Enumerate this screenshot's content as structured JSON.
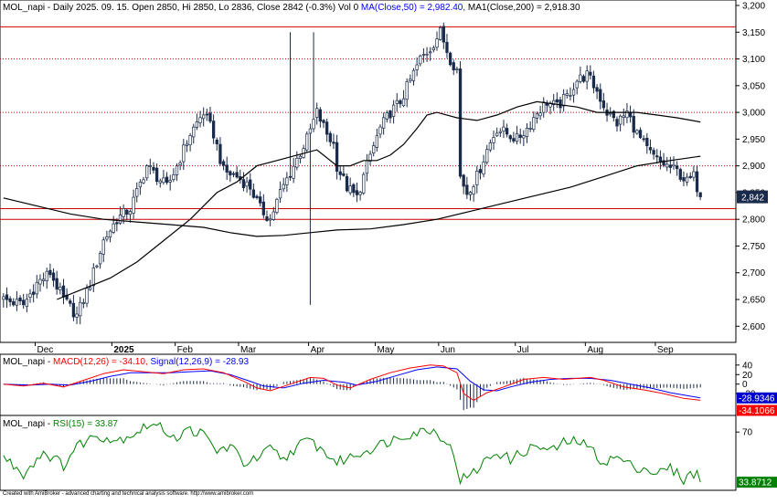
{
  "headers": {
    "price": {
      "prefix": "MOL_napi - Daily 2025. 09. 15. Open 2850, Hi 2850, Lo 2836, Close 2842 (-0.3%) Vol 0 ",
      "ma50": "MA(Close,50) = 2,982.40,",
      "ma200": " MA1(Close,200) = 2,918.30"
    },
    "macd": {
      "prefix": "MOL_napi - ",
      "macd": "MACD(12,26) = -34.10,",
      "signal": " Signal(12,26,9) = -28.93"
    },
    "rsi": {
      "prefix": "MOL_napi - ",
      "rsi": "RSI(15) = 33.87"
    }
  },
  "footer": "Created with AmiBroker - advanced charting and technical analysis software. http://www.amibroker.com",
  "colors": {
    "up": "#ffffff",
    "down": "#1a2a4a",
    "candle_outline": "#1a2a4a",
    "ma50": "#000000",
    "ma200": "#000000",
    "support_line": "#cc0000",
    "macd": "#ff0000",
    "signal": "#0000ff",
    "rsi": "#008000",
    "last_price_bg": "#1a2a4a",
    "macd_value_bg": "#0000cc",
    "signal_value_bg": "#ff0000",
    "rsi_value_bg": "#008000"
  },
  "chart_data": [
    {
      "type": "candlestick",
      "name": "MOL_napi",
      "ylim": [
        2580,
        3200
      ],
      "y_ticks": [
        "2,600",
        "2,650",
        "2,700",
        "2,750",
        "2,800",
        "2,850",
        "2,900",
        "2,950",
        "3,000",
        "3,050",
        "3,100",
        "3,150",
        "3,200"
      ],
      "month_labels": [
        "Dec",
        "2025",
        "Feb",
        "Mar",
        "Apr",
        "May",
        "Jun",
        "Jul",
        "Aug",
        "Sep"
      ],
      "month_start_index": [
        10,
        33,
        52,
        71,
        92,
        112,
        131,
        154,
        175,
        196
      ],
      "bar_count": 210,
      "horizontal_lines": {
        "solid": [
          3160,
          2820,
          2800
        ],
        "dotted": [
          3100,
          3000,
          2900
        ]
      },
      "price_path": [
        [
          0,
          2650
        ],
        [
          6,
          2640
        ],
        [
          10,
          2680
        ],
        [
          14,
          2700
        ],
        [
          18,
          2650
        ],
        [
          22,
          2620
        ],
        [
          26,
          2680
        ],
        [
          30,
          2760
        ],
        [
          34,
          2800
        ],
        [
          38,
          2820
        ],
        [
          40,
          2850
        ],
        [
          43,
          2900
        ],
        [
          46,
          2880
        ],
        [
          49,
          2860
        ],
        [
          52,
          2900
        ],
        [
          56,
          2960
        ],
        [
          60,
          3000
        ],
        [
          63,
          2960
        ],
        [
          66,
          2890
        ],
        [
          70,
          2880
        ],
        [
          74,
          2860
        ],
        [
          77,
          2820
        ],
        [
          80,
          2800
        ],
        [
          83,
          2850
        ],
        [
          87,
          2900
        ],
        [
          91,
          2950
        ],
        [
          94,
          3000
        ],
        [
          97,
          2960
        ],
        [
          99,
          2940
        ],
        [
          100,
          2900
        ],
        [
          103,
          2860
        ],
        [
          106,
          2840
        ],
        [
          108,
          2880
        ],
        [
          110,
          2920
        ],
        [
          113,
          2970
        ],
        [
          116,
          3000
        ],
        [
          119,
          3020
        ],
        [
          122,
          3060
        ],
        [
          125,
          3100
        ],
        [
          128,
          3120
        ],
        [
          131,
          3150
        ],
        [
          134,
          3100
        ],
        [
          136,
          3080
        ],
        [
          137,
          2880
        ],
        [
          139,
          2850
        ],
        [
          142,
          2880
        ],
        [
          145,
          2930
        ],
        [
          148,
          2970
        ],
        [
          151,
          2960
        ],
        [
          154,
          2950
        ],
        [
          157,
          2970
        ],
        [
          160,
          3000
        ],
        [
          163,
          3020
        ],
        [
          166,
          3010
        ],
        [
          169,
          3030
        ],
        [
          172,
          3060
        ],
        [
          175,
          3070
        ],
        [
          178,
          3040
        ],
        [
          181,
          3000
        ],
        [
          184,
          2980
        ],
        [
          187,
          3000
        ],
        [
          190,
          2960
        ],
        [
          193,
          2930
        ],
        [
          196,
          2910
        ],
        [
          199,
          2900
        ],
        [
          202,
          2890
        ],
        [
          205,
          2870
        ],
        [
          207,
          2880
        ],
        [
          209,
          2842
        ]
      ],
      "ma50_path": [
        [
          16,
          2650
        ],
        [
          24,
          2670
        ],
        [
          32,
          2690
        ],
        [
          40,
          2720
        ],
        [
          48,
          2760
        ],
        [
          56,
          2800
        ],
        [
          64,
          2850
        ],
        [
          70,
          2870
        ],
        [
          76,
          2900
        ],
        [
          82,
          2910
        ],
        [
          88,
          2920
        ],
        [
          94,
          2930
        ],
        [
          100,
          2900
        ],
        [
          104,
          2900
        ],
        [
          108,
          2910
        ],
        [
          112,
          2910
        ],
        [
          116,
          2920
        ],
        [
          120,
          2940
        ],
        [
          124,
          2970
        ],
        [
          127,
          2995
        ],
        [
          130,
          3000
        ],
        [
          136,
          2990
        ],
        [
          142,
          2985
        ],
        [
          148,
          2995
        ],
        [
          154,
          3010
        ],
        [
          160,
          3020
        ],
        [
          166,
          3015
        ],
        [
          172,
          3010
        ],
        [
          178,
          3000
        ],
        [
          184,
          3000
        ],
        [
          190,
          3000
        ],
        [
          196,
          2995
        ],
        [
          202,
          2990
        ],
        [
          209,
          2982
        ]
      ],
      "ma200_path": [
        [
          0,
          2840
        ],
        [
          10,
          2825
        ],
        [
          20,
          2810
        ],
        [
          30,
          2800
        ],
        [
          40,
          2795
        ],
        [
          50,
          2790
        ],
        [
          60,
          2785
        ],
        [
          68,
          2775
        ],
        [
          76,
          2768
        ],
        [
          84,
          2770
        ],
        [
          92,
          2775
        ],
        [
          100,
          2780
        ],
        [
          110,
          2782
        ],
        [
          120,
          2790
        ],
        [
          130,
          2800
        ],
        [
          140,
          2815
        ],
        [
          150,
          2830
        ],
        [
          160,
          2845
        ],
        [
          170,
          2860
        ],
        [
          180,
          2880
        ],
        [
          190,
          2900
        ],
        [
          200,
          2910
        ],
        [
          209,
          2918
        ]
      ],
      "last_price": {
        "label": "2,842",
        "value": 2842
      }
    },
    {
      "type": "macd",
      "ylim": [
        -60,
        55
      ],
      "y_ticks": [
        "40",
        "20",
        "0",
        "-20"
      ],
      "macd_path": [
        [
          0,
          0
        ],
        [
          6,
          -4
        ],
        [
          12,
          2
        ],
        [
          18,
          -6
        ],
        [
          24,
          8
        ],
        [
          30,
          22
        ],
        [
          36,
          30
        ],
        [
          42,
          26
        ],
        [
          48,
          22
        ],
        [
          54,
          30
        ],
        [
          60,
          32
        ],
        [
          66,
          24
        ],
        [
          72,
          6
        ],
        [
          76,
          -8
        ],
        [
          80,
          -14
        ],
        [
          86,
          0
        ],
        [
          92,
          14
        ],
        [
          96,
          12
        ],
        [
          100,
          -2
        ],
        [
          104,
          -8
        ],
        [
          110,
          10
        ],
        [
          116,
          24
        ],
        [
          122,
          34
        ],
        [
          128,
          40
        ],
        [
          132,
          38
        ],
        [
          136,
          24
        ],
        [
          138,
          -20
        ],
        [
          141,
          -34
        ],
        [
          145,
          -18
        ],
        [
          150,
          -6
        ],
        [
          156,
          10
        ],
        [
          162,
          14
        ],
        [
          168,
          10
        ],
        [
          172,
          12
        ],
        [
          176,
          14
        ],
        [
          180,
          8
        ],
        [
          186,
          -6
        ],
        [
          192,
          -12
        ],
        [
          198,
          -20
        ],
        [
          204,
          -30
        ],
        [
          209,
          -34
        ]
      ],
      "signal_path": [
        [
          0,
          0
        ],
        [
          8,
          -2
        ],
        [
          14,
          0
        ],
        [
          20,
          -2
        ],
        [
          26,
          6
        ],
        [
          32,
          16
        ],
        [
          38,
          24
        ],
        [
          44,
          24
        ],
        [
          50,
          24
        ],
        [
          56,
          26
        ],
        [
          62,
          28
        ],
        [
          68,
          20
        ],
        [
          74,
          6
        ],
        [
          78,
          -4
        ],
        [
          84,
          -8
        ],
        [
          90,
          2
        ],
        [
          96,
          8
        ],
        [
          102,
          4
        ],
        [
          106,
          -2
        ],
        [
          112,
          6
        ],
        [
          118,
          18
        ],
        [
          124,
          30
        ],
        [
          130,
          36
        ],
        [
          136,
          32
        ],
        [
          140,
          6
        ],
        [
          144,
          -12
        ],
        [
          148,
          -14
        ],
        [
          152,
          -6
        ],
        [
          158,
          4
        ],
        [
          164,
          10
        ],
        [
          170,
          12
        ],
        [
          176,
          12
        ],
        [
          182,
          8
        ],
        [
          188,
          0
        ],
        [
          194,
          -8
        ],
        [
          200,
          -18
        ],
        [
          205,
          -24
        ],
        [
          209,
          -28.93
        ]
      ],
      "macd_value": {
        "label": "-34.1066"
      },
      "signal_value": {
        "label": "-28.9346"
      }
    },
    {
      "type": "line",
      "name": "RSI",
      "ylim": [
        30,
        80
      ],
      "y_ticks": [
        "70"
      ],
      "rsi_path": [
        [
          0,
          52
        ],
        [
          6,
          40
        ],
        [
          12,
          56
        ],
        [
          18,
          46
        ],
        [
          22,
          60
        ],
        [
          28,
          68
        ],
        [
          34,
          64
        ],
        [
          40,
          70
        ],
        [
          44,
          76
        ],
        [
          48,
          72
        ],
        [
          52,
          66
        ],
        [
          56,
          72
        ],
        [
          60,
          68
        ],
        [
          64,
          56
        ],
        [
          68,
          60
        ],
        [
          72,
          48
        ],
        [
          76,
          50
        ],
        [
          80,
          58
        ],
        [
          84,
          50
        ],
        [
          88,
          60
        ],
        [
          92,
          64
        ],
        [
          96,
          56
        ],
        [
          100,
          48
        ],
        [
          104,
          52
        ],
        [
          108,
          56
        ],
        [
          112,
          60
        ],
        [
          116,
          64
        ],
        [
          120,
          68
        ],
        [
          124,
          70
        ],
        [
          128,
          72
        ],
        [
          132,
          66
        ],
        [
          135,
          54
        ],
        [
          137,
          36
        ],
        [
          140,
          38
        ],
        [
          144,
          48
        ],
        [
          148,
          56
        ],
        [
          152,
          50
        ],
        [
          156,
          56
        ],
        [
          160,
          60
        ],
        [
          164,
          56
        ],
        [
          168,
          62
        ],
        [
          172,
          64
        ],
        [
          176,
          58
        ],
        [
          180,
          48
        ],
        [
          184,
          52
        ],
        [
          188,
          46
        ],
        [
          192,
          44
        ],
        [
          196,
          40
        ],
        [
          200,
          44
        ],
        [
          204,
          36
        ],
        [
          208,
          42
        ],
        [
          209,
          33.87
        ]
      ],
      "rsi_value": {
        "label": "33.8712"
      }
    }
  ]
}
